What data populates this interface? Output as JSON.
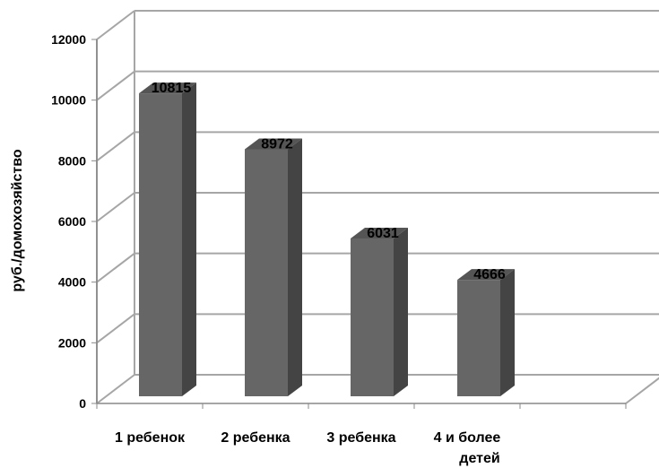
{
  "chart_data": {
    "type": "bar",
    "categories": [
      "1 ребенок",
      "2 ребенка",
      "3 ребенка",
      "4 и более детей"
    ],
    "category_lines": [
      [
        "1 ребенок"
      ],
      [
        "2 ребенка"
      ],
      [
        "3 ребенка"
      ],
      [
        "4 и более",
        "детей"
      ]
    ],
    "values": [
      10815,
      8972,
      6031,
      4666
    ],
    "data_labels": [
      "10815",
      "8972",
      "6031",
      "4666"
    ],
    "y_ticks": [
      "0",
      "2000",
      "4000",
      "6000",
      "8000",
      "10000",
      "12000"
    ],
    "ylabel": "руб./домохозяйство",
    "xlabel": "",
    "title": "",
    "ylim": [
      0,
      12000
    ],
    "grid": true,
    "legend": "none",
    "style": "3d-column",
    "colors": {
      "bar_front": "#666666",
      "bar_side": "#444444",
      "bar_top": "#555555",
      "grid": "#a6a6a6"
    }
  }
}
